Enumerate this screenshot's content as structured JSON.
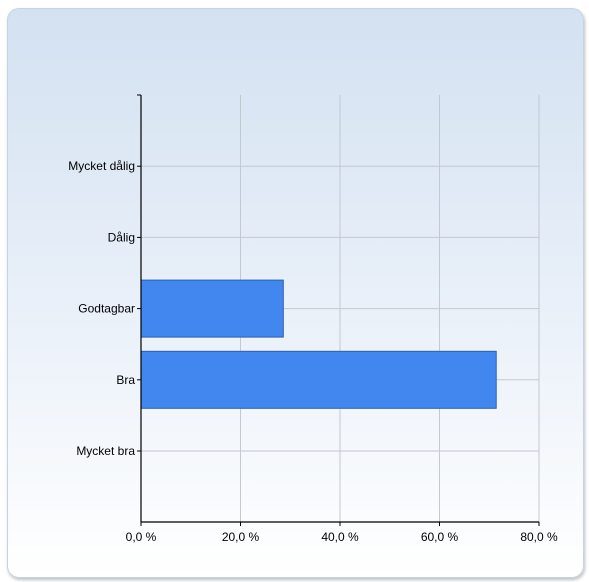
{
  "chart_data": {
    "type": "bar",
    "orientation": "horizontal",
    "categories": [
      "Mycket dålig",
      "Dålig",
      "Godtagbar",
      "Bra",
      "Mycket bra"
    ],
    "values": [
      0,
      0,
      28.6,
      71.4,
      0
    ],
    "xlim": [
      0,
      80
    ],
    "ticks": [
      0,
      20,
      40,
      60,
      80
    ],
    "tick_labels": [
      "0,0 %",
      "20,0 %",
      "40,0 %",
      "60,0 %",
      "80,0 %"
    ],
    "grid": true,
    "bar_color": "#4287f0",
    "bar_edge_color": "#2b5fae"
  }
}
